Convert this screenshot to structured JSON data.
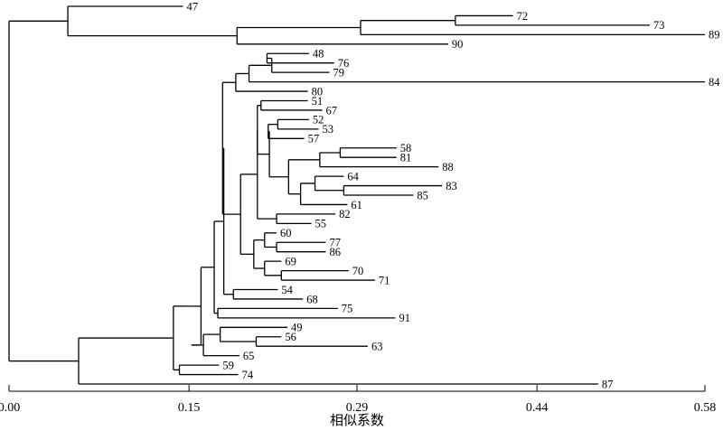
{
  "axis": {
    "title": "相似系数",
    "ticks": [
      {
        "value": 0.0,
        "label": "0.00"
      },
      {
        "value": 0.15,
        "label": "0.15"
      },
      {
        "value": 0.29,
        "label": "0.29"
      },
      {
        "value": 0.44,
        "label": "0.44"
      },
      {
        "value": 0.58,
        "label": "0.58"
      }
    ]
  },
  "leaves": [
    "47",
    "72",
    "73",
    "89",
    "90",
    "48",
    "76",
    "79",
    "84",
    "80",
    "51",
    "67",
    "52",
    "53",
    "57",
    "58",
    "81",
    "88",
    "64",
    "83",
    "85",
    "61",
    "82",
    "55",
    "60",
    "77",
    "86",
    "69",
    "70",
    "71",
    "54",
    "68",
    "75",
    "91",
    "49",
    "56",
    "63",
    "65",
    "59",
    "74",
    "87"
  ],
  "tree": {
    "h": 0.0,
    "c": [
      {
        "h": 0.049,
        "c": [
          {
            "h": 0.145,
            "leaf": "47"
          },
          {
            "h": 0.19,
            "c": [
              {
                "h": 0.293,
                "c": [
                  {
                    "h": 0.372,
                    "c": [
                      {
                        "h": 0.42,
                        "leaf": "72"
                      },
                      {
                        "h": 0.534,
                        "leaf": "73"
                      }
                    ]
                  },
                  {
                    "h": 0.58,
                    "leaf": "89"
                  }
                ]
              },
              {
                "h": 0.366,
                "leaf": "90"
              }
            ]
          }
        ]
      },
      {
        "h": 0.058,
        "c": [
          {
            "h": 0.137,
            "c": [
              {
                "h": 0.147,
                "c": [
                  {
                    "h": 0.16,
                    "c": [
                      {
                        "h": 0.171,
                        "c": [
                          {
                            "h": 0.179,
                            "c": [
                              {
                                "h": 0.178,
                                "c": [
                                  {
                                    "h": 0.189,
                                    "c": [
                                      {
                                        "h": 0.2,
                                        "c": [
                                          {
                                            "h": 0.219,
                                            "c": [
                                              {
                                                "h": 0.215,
                                                "c": [
                                                  {
                                                    "h": 0.25,
                                                    "leaf": "48"
                                                  },
                                                  {
                                                    "h": 0.271,
                                                    "leaf": "76"
                                                  }
                                                ]
                                              },
                                              {
                                                "h": 0.267,
                                                "leaf": "79"
                                              }
                                            ]
                                          },
                                          {
                                            "h": 0.58,
                                            "leaf": "84"
                                          }
                                        ]
                                      },
                                      {
                                        "h": 0.249,
                                        "leaf": "80"
                                      }
                                    ]
                                  },
                                  {
                                    "h": 0.193,
                                    "c": [
                                      {
                                        "h": 0.2,
                                        "c": [
                                          {
                                            "h": 0.207,
                                            "c": [
                                              {
                                                "h": 0.207,
                                                "c": [
                                                  {
                                                    "h": 0.21,
                                                    "c": [
                                                      {
                                                        "h": 0.249,
                                                        "leaf": "51"
                                                      },
                                                      {
                                                        "h": 0.261,
                                                        "leaf": "67"
                                                      }
                                                    ]
                                                  },
                                                  {
                                                    "h": 0.217,
                                                    "c": [
                                                      {
                                                        "h": 0.216,
                                                        "c": [
                                                          {
                                                            "h": 0.224,
                                                            "c": [
                                                              {
                                                                "h": 0.25,
                                                                "leaf": "52"
                                                              },
                                                              {
                                                                "h": 0.258,
                                                                "leaf": "53"
                                                              }
                                                            ]
                                                          },
                                                          {
                                                            "h": 0.246,
                                                            "leaf": "57"
                                                          }
                                                        ]
                                                      },
                                                      {
                                                        "h": 0.233,
                                                        "c": [
                                                          {
                                                            "h": 0.259,
                                                            "c": [
                                                              {
                                                                "h": 0.276,
                                                                "c": [
                                                                  {
                                                                    "h": 0.323,
                                                                    "leaf": "58"
                                                                  },
                                                                  {
                                                                    "h": 0.323,
                                                                    "leaf": "81"
                                                                  }
                                                                ]
                                                              },
                                                              {
                                                                "h": 0.358,
                                                                "leaf": "88"
                                                              }
                                                            ]
                                                          },
                                                          {
                                                            "h": 0.243,
                                                            "c": [
                                                              {
                                                                "h": 0.255,
                                                                "c": [
                                                                  {
                                                                    "h": 0.279,
                                                                    "leaf": "64"
                                                                  },
                                                                  {
                                                                    "h": 0.279,
                                                                    "c": [
                                                                      {
                                                                        "h": 0.361,
                                                                        "leaf": "83"
                                                                      },
                                                                      {
                                                                        "h": 0.337,
                                                                        "leaf": "85"
                                                                      }
                                                                    ]
                                                                  }
                                                                ]
                                                              },
                                                              {
                                                                "h": 0.282,
                                                                "leaf": "61"
                                                              }
                                                            ]
                                                          }
                                                        ]
                                                      }
                                                    ]
                                                  }
                                                ]
                                              },
                                              {
                                                "h": 0.223,
                                                "c": [
                                                  {
                                                    "h": 0.272,
                                                    "leaf": "82"
                                                  },
                                                  {
                                                    "h": 0.252,
                                                    "leaf": "55"
                                                  }
                                                ]
                                              }
                                            ]
                                          }
                                        ]
                                      },
                                      {
                                        "h": 0.194,
                                        "c": [
                                          {
                                            "h": 0.197,
                                            "c": [
                                              {
                                                "h": 0.204,
                                                "c": [
                                                  {
                                                    "h": 0.213,
                                                    "c": [
                                                      {
                                                        "h": 0.223,
                                                        "leaf": "60"
                                                      },
                                                      {
                                                        "h": 0.223,
                                                        "c": [
                                                          {
                                                            "h": 0.264,
                                                            "leaf": "77"
                                                          },
                                                          {
                                                            "h": 0.264,
                                                            "leaf": "86"
                                                          }
                                                        ]
                                                      }
                                                    ]
                                                  },
                                                  {
                                                    "h": 0.213,
                                                    "c": [
                                                      {
                                                        "h": 0.227,
                                                        "leaf": "69"
                                                      },
                                                      {
                                                        "h": 0.227,
                                                        "c": [
                                                          {
                                                            "h": 0.283,
                                                            "leaf": "70"
                                                          },
                                                          {
                                                            "h": 0.305,
                                                            "leaf": "71"
                                                          }
                                                        ]
                                                      }
                                                    ]
                                                  }
                                                ]
                                              }
                                            ]
                                          }
                                        ]
                                      }
                                    ]
                                  }
                                ]
                              },
                              {
                                "h": 0.187,
                                "c": [
                                  {
                                    "h": 0.224,
                                    "leaf": "54"
                                  },
                                  {
                                    "h": 0.245,
                                    "leaf": "68"
                                  }
                                ]
                              }
                            ]
                          },
                          {
                            "h": 0.174,
                            "c": [
                              {
                                "h": 0.274,
                                "leaf": "75"
                              },
                              {
                                "h": 0.322,
                                "leaf": "91"
                              }
                            ]
                          }
                        ]
                      },
                      {
                        "h": 0.152,
                        "c": [
                          {
                            "h": 0.162,
                            "c": [
                              {
                                "h": 0.176,
                                "c": [
                                  {
                                    "h": 0.232,
                                    "leaf": "49"
                                  },
                                  {
                                    "h": 0.206,
                                    "c": [
                                      {
                                        "h": 0.227,
                                        "leaf": "56"
                                      },
                                      {
                                        "h": 0.299,
                                        "leaf": "63"
                                      }
                                    ]
                                  }
                                ]
                              },
                              {
                                "h": 0.192,
                                "leaf": "65"
                              }
                            ]
                          }
                        ]
                      }
                    ]
                  }
                ]
              },
              {
                "h": 0.142,
                "c": [
                  {
                    "h": 0.175,
                    "leaf": "59"
                  },
                  {
                    "h": 0.191,
                    "leaf": "74"
                  }
                ]
              }
            ]
          },
          {
            "h": 0.491,
            "leaf": "87"
          }
        ]
      }
    ]
  }
}
